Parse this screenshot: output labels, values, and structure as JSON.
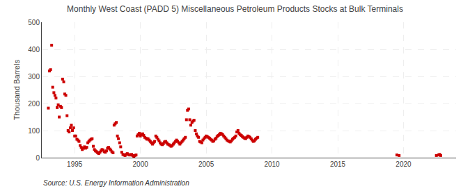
{
  "chart_data": {
    "type": "scatter",
    "title": "Monthly West Coast (PADD 5) Miscellaneous Petroleum Products Stocks at Bulk Terminals",
    "ylabel": "Thousand Barrels",
    "annotations": [
      "Source: U.S. Energy Information Administration"
    ],
    "color": "#cc0000",
    "marker": "square",
    "grid": true,
    "xlim": [
      1992.5,
      2024
    ],
    "xticks": [
      1995,
      2000,
      2005,
      2010,
      2015,
      2020
    ],
    "ylim": [
      0,
      500
    ],
    "yticks": [
      0,
      100,
      200,
      300,
      400,
      500
    ],
    "x": [
      1993.0,
      1993.08,
      1993.17,
      1993.25,
      1993.33,
      1993.42,
      1993.5,
      1993.58,
      1993.67,
      1993.75,
      1993.83,
      1993.92,
      1994.0,
      1994.08,
      1994.17,
      1994.25,
      1994.33,
      1994.42,
      1994.5,
      1994.58,
      1994.67,
      1994.75,
      1994.83,
      1994.92,
      1995.0,
      1995.08,
      1995.17,
      1995.25,
      1995.33,
      1995.42,
      1995.5,
      1995.58,
      1995.67,
      1995.75,
      1995.83,
      1995.92,
      1996.0,
      1996.08,
      1996.17,
      1996.25,
      1996.33,
      1996.42,
      1996.5,
      1996.58,
      1996.67,
      1996.75,
      1996.83,
      1996.92,
      1997.0,
      1997.08,
      1997.17,
      1997.25,
      1997.33,
      1997.42,
      1997.5,
      1997.58,
      1997.67,
      1997.75,
      1997.83,
      1997.92,
      1998.0,
      1998.08,
      1998.17,
      1998.25,
      1998.33,
      1998.42,
      1998.5,
      1998.58,
      1998.67,
      1998.75,
      1998.83,
      1998.92,
      1999.0,
      1999.08,
      1999.17,
      1999.25,
      1999.33,
      1999.42,
      1999.5,
      1999.58,
      1999.67,
      1999.75,
      1999.83,
      1999.92,
      2000.0,
      2000.08,
      2000.17,
      2000.25,
      2000.33,
      2000.42,
      2000.5,
      2000.58,
      2000.67,
      2000.75,
      2000.83,
      2000.92,
      2001.0,
      2001.08,
      2001.17,
      2001.25,
      2001.33,
      2001.42,
      2001.5,
      2001.58,
      2001.67,
      2001.75,
      2001.83,
      2001.92,
      2002.0,
      2002.08,
      2002.17,
      2002.25,
      2002.33,
      2002.42,
      2002.5,
      2002.58,
      2002.67,
      2002.75,
      2002.83,
      2002.92,
      2003.0,
      2003.08,
      2003.17,
      2003.25,
      2003.33,
      2003.42,
      2003.5,
      2003.58,
      2003.67,
      2003.75,
      2003.83,
      2003.92,
      2004.0,
      2004.08,
      2004.17,
      2004.25,
      2004.33,
      2004.42,
      2004.5,
      2004.58,
      2004.67,
      2004.75,
      2004.83,
      2004.92,
      2005.0,
      2005.08,
      2005.17,
      2005.25,
      2005.33,
      2005.42,
      2005.5,
      2005.58,
      2005.67,
      2005.75,
      2005.83,
      2005.92,
      2006.0,
      2006.08,
      2006.17,
      2006.25,
      2006.33,
      2006.42,
      2006.5,
      2006.58,
      2006.67,
      2006.75,
      2006.83,
      2006.92,
      2007.0,
      2007.08,
      2007.17,
      2007.25,
      2007.33,
      2007.42,
      2007.5,
      2007.58,
      2007.67,
      2007.75,
      2007.83,
      2007.92,
      2008.0,
      2008.08,
      2008.17,
      2008.25,
      2008.33,
      2008.42,
      2008.5,
      2008.58,
      2008.67,
      2008.75,
      2008.83,
      2008.92,
      2019.5,
      2019.67,
      2022.5,
      2022.67,
      2022.75,
      2022.83
    ],
    "values": [
      183,
      320,
      325,
      415,
      260,
      240,
      230,
      220,
      185,
      195,
      150,
      190,
      185,
      290,
      280,
      235,
      230,
      155,
      100,
      95,
      110,
      120,
      100,
      110,
      80,
      80,
      68,
      65,
      60,
      45,
      38,
      30,
      35,
      40,
      35,
      38,
      55,
      60,
      65,
      68,
      70,
      42,
      30,
      25,
      22,
      18,
      15,
      20,
      25,
      30,
      28,
      22,
      20,
      25,
      35,
      38,
      32,
      28,
      22,
      18,
      120,
      125,
      130,
      80,
      70,
      55,
      40,
      20,
      12,
      10,
      8,
      12,
      15,
      12,
      10,
      10,
      12,
      8,
      5,
      8,
      10,
      80,
      85,
      90,
      80,
      85,
      88,
      82,
      75,
      72,
      68,
      70,
      65,
      60,
      55,
      50,
      55,
      60,
      80,
      75,
      68,
      62,
      55,
      50,
      48,
      52,
      58,
      60,
      55,
      50,
      48,
      45,
      42,
      45,
      50,
      55,
      60,
      65,
      60,
      55,
      50,
      55,
      60,
      65,
      70,
      75,
      140,
      175,
      180,
      140,
      120,
      130,
      135,
      138,
      100,
      88,
      80,
      75,
      60,
      58,
      55,
      65,
      70,
      75,
      80,
      78,
      75,
      72,
      68,
      65,
      60,
      62,
      68,
      72,
      78,
      82,
      85,
      90,
      88,
      85,
      80,
      75,
      70,
      65,
      62,
      60,
      58,
      62,
      68,
      72,
      75,
      80,
      95,
      100,
      90,
      85,
      82,
      78,
      75,
      72,
      70,
      75,
      80,
      78,
      75,
      70,
      65,
      60,
      62,
      68,
      72,
      75,
      10,
      8,
      8,
      10,
      12,
      8
    ]
  }
}
